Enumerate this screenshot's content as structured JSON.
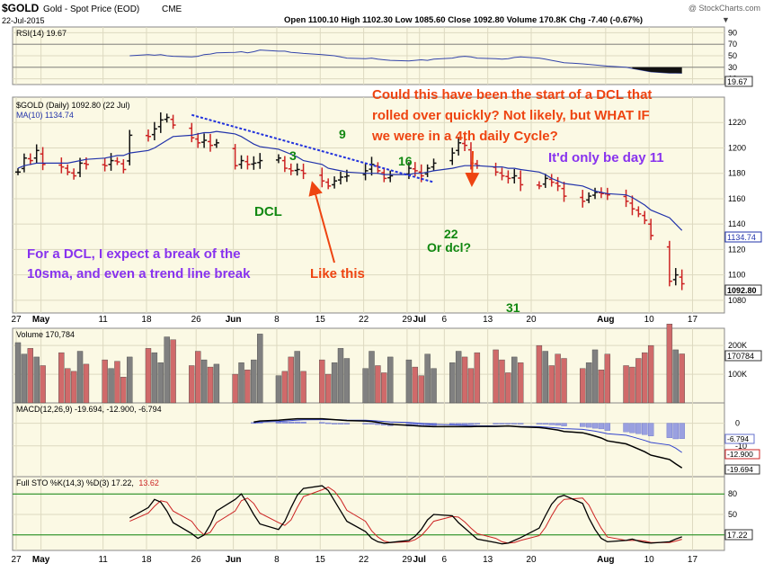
{
  "header": {
    "symbol": "$GOLD",
    "name": "Gold - Spot Price (EOD)",
    "exchange": "CME",
    "date": "22-Jul-2015",
    "stats": "Open 1100.10  High 1102.30  Low 1085.60  Close 1092.80  Volume 170.8K  Chg -7.40 (-0.67%)",
    "watermark": "@ StockCharts.com"
  },
  "colors": {
    "panel_bg": "#fbf9e4",
    "up_bar": "#111111",
    "down_bar": "#cc2222",
    "ma_line": "#2233aa",
    "volume_up": "#808080",
    "volume_down": "#d06a6a",
    "annotation_red": "#ee4411",
    "annotation_purple": "#8833ee",
    "annotation_green": "#118811"
  },
  "chart_data": {
    "type": "line",
    "x_labels": [
      "27",
      "May",
      "11",
      "18",
      "26",
      "Jun",
      "8",
      "15",
      "22",
      "29",
      "Jul",
      "6",
      "13",
      "20",
      "Aug",
      "10",
      "17"
    ],
    "x_label_days": [
      0,
      4,
      14,
      21,
      29,
      35,
      42,
      49,
      56,
      63,
      65,
      69,
      76,
      83,
      95,
      102,
      109
    ],
    "price": {
      "label": "$GOLD (Daily) 1092.80 (22 Jul)",
      "ma_label": "MA(10) 1134.74",
      "ylim": [
        1070,
        1240
      ],
      "yticks": [
        1080,
        1100,
        1120,
        1140,
        1160,
        1180,
        1200,
        1220
      ],
      "last_close_tag": "1092.80",
      "ma_tag": "1134.74",
      "closes": [
        1181,
        1192,
        1190,
        1198,
        1187,
        1185,
        1181,
        1178,
        1188,
        1187,
        1186,
        1190,
        1189,
        1183,
        1210,
        1209,
        1215,
        1222,
        1224,
        1218,
        1208,
        1204,
        1206,
        1202,
        1204,
        1186,
        1190,
        1187,
        1188,
        1190,
        1192,
        1184,
        1182,
        1183,
        1180,
        1174,
        1170,
        1174,
        1177,
        1178,
        1182,
        1187,
        1182,
        1176,
        1178,
        1184,
        1182,
        1178,
        1184,
        1188,
        1196,
        1204,
        1202,
        1188,
        1186,
        1181,
        1178,
        1176,
        1178,
        1171,
        1170,
        1176,
        1173,
        1170,
        1162,
        1158,
        1162,
        1165,
        1164,
        1163,
        1158,
        1152,
        1148,
        1143,
        1131,
        1095,
        1100,
        1093
      ],
      "ma10": [
        1184,
        1186,
        1187,
        1188,
        1188,
        1188,
        1188,
        1189,
        1190,
        1191,
        1192,
        1193,
        1194,
        1194,
        1196,
        1198,
        1200,
        1203,
        1206,
        1209,
        1210,
        1211,
        1212,
        1212,
        1213,
        1211,
        1209,
        1206,
        1203,
        1201,
        1199,
        1197,
        1195,
        1193,
        1190,
        1187,
        1184,
        1183,
        1182,
        1181,
        1180,
        1180,
        1180,
        1179,
        1179,
        1179,
        1180,
        1180,
        1181,
        1182,
        1184,
        1185,
        1186,
        1186,
        1186,
        1185,
        1185,
        1184,
        1184,
        1183,
        1181,
        1179,
        1176,
        1174,
        1172,
        1170,
        1168,
        1166,
        1165,
        1164,
        1163,
        1161,
        1158,
        1155,
        1151,
        1145,
        1140,
        1135
      ],
      "trendline": {
        "from": [
          20,
          1226
        ],
        "to": [
          49,
          1173
        ]
      }
    },
    "rsi": {
      "label": "RSI(14) 19.67",
      "ylim": [
        0,
        100
      ],
      "yticks": [
        10,
        30,
        50,
        70,
        90
      ],
      "levels": [
        30,
        70
      ],
      "last_tag": "19.67",
      "values": [
        50,
        52,
        51,
        52,
        50,
        49,
        48,
        49,
        52,
        53,
        55,
        56,
        57,
        55,
        57,
        60,
        58,
        58,
        56,
        55,
        54,
        52,
        51,
        50,
        48,
        46,
        45,
        46,
        44,
        43,
        42,
        41,
        42,
        43,
        42,
        44,
        46,
        48,
        49,
        48,
        46,
        45,
        44,
        45,
        47,
        48,
        46,
        44,
        42,
        40,
        38,
        36,
        35,
        34,
        33,
        32,
        30,
        28,
        26,
        24,
        22,
        20,
        20,
        19.67
      ]
    },
    "volume": {
      "label": "Volume 170,784",
      "yticks_labels": [
        "200K",
        "100K"
      ],
      "ytick_values": [
        200000,
        100000
      ],
      "ylim": [
        0,
        260000
      ],
      "last_tag": "170784",
      "values": [
        210000,
        170000,
        190000,
        160000,
        130000,
        175000,
        120000,
        110000,
        180000,
        135000,
        150000,
        120000,
        145000,
        90000,
        160000,
        190000,
        175000,
        140000,
        230000,
        220000,
        130000,
        180000,
        150000,
        125000,
        135000,
        100000,
        140000,
        115000,
        150000,
        240000,
        95000,
        110000,
        160000,
        180000,
        110000,
        150000,
        100000,
        140000,
        190000,
        155000,
        120000,
        180000,
        130000,
        105000,
        160000,
        150000,
        125000,
        95000,
        170000,
        120000,
        140000,
        180000,
        160000,
        120000,
        175000,
        185000,
        150000,
        105000,
        160000,
        140000,
        200000,
        180000,
        130000,
        170000,
        155000,
        120000,
        140000,
        185000,
        115000,
        170000,
        130000,
        125000,
        155000,
        175000,
        200000,
        275000,
        185000,
        170784
      ]
    },
    "macd": {
      "label": "MACD(12,26,9) -19.694, -12.900, -6.794",
      "ylim": [
        -22,
        5
      ],
      "yticks": [
        0,
        -10
      ],
      "tags": [
        "-6.794",
        "-12.900",
        "-19.694"
      ],
      "macd": [
        0.5,
        1.0,
        1.3,
        1.6,
        1.8,
        2.0,
        2.0,
        2.0,
        1.8,
        1.6,
        1.4,
        1.2,
        1.0,
        0.8,
        0.4,
        -0.1,
        -0.5,
        -0.9,
        -1.1,
        -1.3,
        -1.4,
        -1.5,
        -1.5,
        -1.5,
        -1.5,
        -1.5,
        -1.4,
        -1.4,
        -1.3,
        -1.2,
        -1.4,
        -1.6,
        -1.9,
        -2.2,
        -2.6,
        -3.0,
        -3.6,
        -4.2,
        -4.9,
        -5.7,
        -6.5,
        -7.8,
        -9.1,
        -10.2,
        -11.4,
        -12.6,
        -14.1,
        -16.0,
        -17.9,
        -19.694
      ],
      "signal": [
        0.2,
        0.5,
        0.8,
        1.0,
        1.2,
        1.4,
        1.5,
        1.6,
        1.6,
        1.6,
        1.5,
        1.4,
        1.3,
        1.2,
        1.0,
        0.8,
        0.6,
        0.3,
        0.1,
        -0.1,
        -0.3,
        -0.5,
        -0.7,
        -0.8,
        -0.9,
        -1.0,
        -1.1,
        -1.2,
        -1.2,
        -1.2,
        -1.3,
        -1.4,
        -1.5,
        -1.7,
        -1.9,
        -2.1,
        -2.4,
        -2.7,
        -3.1,
        -3.5,
        -4.0,
        -4.6,
        -5.3,
        -6.0,
        -6.8,
        -7.6,
        -8.5,
        -9.6,
        -11.0,
        -12.9
      ],
      "histogram": [
        0.3,
        0.5,
        0.5,
        0.6,
        0.6,
        0.6,
        0.5,
        0.4,
        0.2,
        0.0,
        -0.1,
        -0.2,
        -0.3,
        -0.4,
        -0.6,
        -0.9,
        -1.1,
        -1.2,
        -1.2,
        -1.2,
        -1.1,
        -1.0,
        -0.8,
        -0.7,
        -0.6,
        -0.5,
        -0.3,
        -0.2,
        -0.1,
        0.0,
        -0.1,
        -0.2,
        -0.4,
        -0.5,
        -0.7,
        -0.9,
        -1.2,
        -1.5,
        -1.8,
        -2.2,
        -2.5,
        -3.2,
        -3.8,
        -4.2,
        -4.6,
        -5.0,
        -5.6,
        -6.4,
        -6.9,
        -6.794
      ]
    },
    "stochastic": {
      "label": "Full STO %K(14,3) %D(3) 17.22, 13.62",
      "label_k": "Full STO %K(14,3) %D(3) 17.22,",
      "label_d": "13.62",
      "ylim": [
        0,
        100
      ],
      "yticks": [
        20,
        50,
        80
      ],
      "levels": [
        20,
        80
      ],
      "last_tag": "17.22",
      "k": [
        45,
        60,
        72,
        68,
        55,
        38,
        22,
        15,
        20,
        35,
        55,
        72,
        80,
        66,
        50,
        36,
        28,
        40,
        60,
        78,
        88,
        92,
        85,
        70,
        55,
        40,
        25,
        15,
        10,
        8,
        9,
        12,
        18,
        28,
        42,
        50,
        48,
        38,
        30,
        22,
        14,
        9,
        7,
        8,
        12,
        16,
        30,
        48,
        65,
        75,
        78,
        66,
        45,
        28,
        15,
        10,
        12,
        14,
        11,
        9,
        8,
        10,
        14,
        17.22
      ],
      "d": [
        40,
        52,
        62,
        70,
        68,
        55,
        40,
        28,
        20,
        24,
        38,
        55,
        70,
        74,
        66,
        52,
        38,
        34,
        42,
        60,
        76,
        86,
        90,
        84,
        72,
        56,
        40,
        26,
        17,
        11,
        9,
        10,
        13,
        19,
        29,
        40,
        47,
        46,
        39,
        30,
        22,
        15,
        10,
        8,
        9,
        12,
        19,
        31,
        48,
        63,
        72,
        74,
        64,
        46,
        30,
        17,
        12,
        12,
        12,
        11,
        9,
        9,
        11,
        13.62
      ]
    }
  },
  "annotations": {
    "dcl": "DCL",
    "n3": "3",
    "n9": "9",
    "n16": "16",
    "n22": "22",
    "or_dcl": "Or dcl?",
    "n31": "31",
    "q_line1": "Could this have been the start of a DCL that",
    "q_line2": "rolled over quickly?  Not likely, but WHAT IF",
    "q_line3": "we were in a 4th daily Cycle?",
    "day11": "It'd only be day 11",
    "dcl_line1": "For a DCL, I expect a break of the",
    "dcl_line2": "10sma, and even a trend line break",
    "like_this": "Like this"
  }
}
